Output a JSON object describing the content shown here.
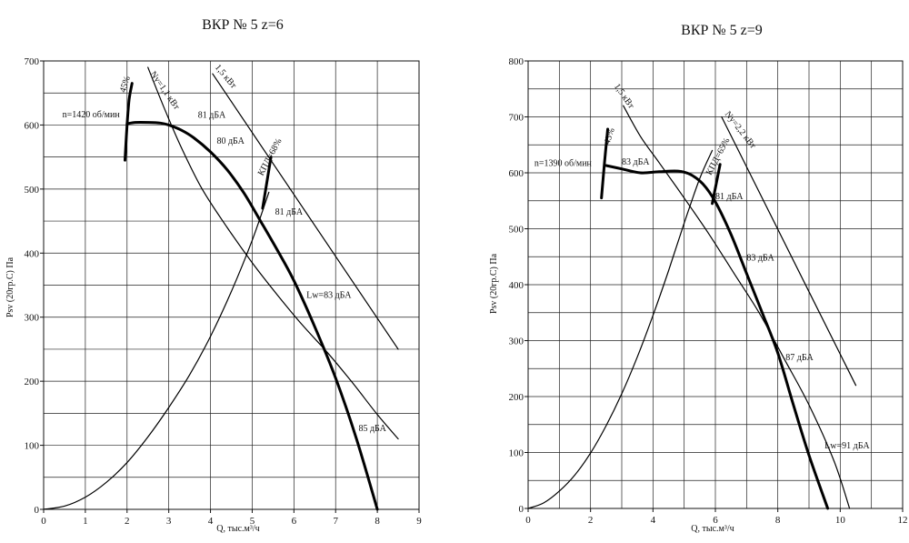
{
  "charts": [
    {
      "title": "ВКР № 5 z=6",
      "xlabel": "Q, тыс.м³/ч",
      "ylabel": "Psv (20гр.C) Па",
      "xticks": [
        "0",
        "1",
        "2",
        "3",
        "4",
        "5",
        "6",
        "7",
        "8",
        "9"
      ],
      "yticks": [
        "0",
        "100",
        "200",
        "300",
        "400",
        "500",
        "600",
        "700"
      ],
      "annotations": {
        "speed": "n=1420 об/мин",
        "eff45": "45%",
        "eff_max": "КПД=68%",
        "ny": "Ny=1,1 кВт",
        "ny2": "1,5 кВт",
        "lw": "Lw=83 дБА",
        "s1": "81 дБА",
        "s2": "80 дБА",
        "s3": "81 дБА",
        "s4": "85 дБА"
      }
    },
    {
      "title": "ВКР № 5 z=9",
      "xlabel": "Q, тыс.м³/ч",
      "ylabel": "Psv (20гр.C) Па",
      "xticks": [
        "0",
        "2",
        "4",
        "6",
        "8",
        "10",
        "12"
      ],
      "yticks": [
        "0",
        "100",
        "200",
        "300",
        "400",
        "500",
        "600",
        "700",
        "800"
      ],
      "annotations": {
        "speed": "n=1390 об/мин",
        "eff45": "45%",
        "eff_max": "КПД=65%",
        "ny": "1,5 кВт",
        "ny2": "Ny=2,2 кВт",
        "lw": "Lw=91 дБА",
        "s1": "83 дБА",
        "s2": "81 дБА",
        "s3": "83 дБА",
        "s4": "87 дБА"
      }
    }
  ],
  "chart_data": [
    {
      "type": "line",
      "title": "ВКР № 5 z=6",
      "xlabel": "Q, тыс.м³/ч",
      "ylabel": "Psv (20гр.C) Па",
      "xlim": [
        0,
        9
      ],
      "ylim": [
        0,
        700
      ],
      "grid": true,
      "series": [
        {
          "name": "n=1420 об/мин",
          "style": "bold",
          "x": [
            2.0,
            2.2,
            2.5,
            2.8,
            3.0,
            3.3,
            3.6,
            4.0,
            4.4,
            4.8,
            5.2,
            5.6,
            6.0,
            6.5,
            7.0,
            7.5,
            8.0
          ],
          "y": [
            602,
            604,
            604,
            603,
            600,
            592,
            580,
            558,
            530,
            494,
            450,
            405,
            357,
            285,
            205,
            110,
            0
          ]
        },
        {
          "name": "45%",
          "style": "bold",
          "x": [
            1.95,
            2.0,
            2.05,
            2.12
          ],
          "y": [
            545,
            600,
            640,
            665
          ]
        },
        {
          "name": "КПД=68%",
          "style": "bold",
          "x": [
            5.25,
            5.45
          ],
          "y": [
            470,
            550
          ]
        },
        {
          "name": "Ny=1,1 кВт",
          "style": "thin",
          "x": [
            2.5,
            2.9,
            3.3,
            3.8,
            4.4,
            5.0,
            5.6,
            6.2,
            6.8,
            7.4,
            8.0,
            8.5
          ],
          "y": [
            690,
            625,
            565,
            500,
            440,
            385,
            335,
            288,
            245,
            198,
            148,
            110
          ]
        },
        {
          "name": "1,5 кВт",
          "style": "thin",
          "x": [
            4.05,
            8.5
          ],
          "y": [
            680,
            250
          ]
        },
        {
          "name": "system",
          "style": "thin",
          "x": [
            0,
            0.5,
            1.0,
            1.5,
            2.0,
            2.5,
            3.0,
            3.5,
            4.0,
            4.5,
            5.0,
            5.4
          ],
          "y": [
            0,
            5,
            19,
            42,
            73,
            113,
            159,
            210,
            270,
            340,
            420,
            495
          ]
        }
      ]
    },
    {
      "type": "line",
      "title": "ВКР № 5 z=9",
      "xlabel": "Q, тыс.м³/ч",
      "ylabel": "Psv (20гр.C) Па",
      "xlim": [
        0,
        12
      ],
      "ylim": [
        0,
        800
      ],
      "grid": true,
      "series": [
        {
          "name": "n=1390 об/мин",
          "style": "bold",
          "x": [
            2.5,
            3.0,
            3.6,
            4.2,
            4.8,
            5.2,
            5.6,
            6.0,
            6.5,
            7.0,
            7.5,
            8.0,
            8.5,
            9.0,
            9.6
          ],
          "y": [
            613,
            607,
            600,
            602,
            603,
            597,
            580,
            548,
            490,
            420,
            350,
            278,
            185,
            95,
            0
          ]
        },
        {
          "name": "45%",
          "style": "bold",
          "x": [
            2.35,
            2.45,
            2.55
          ],
          "y": [
            555,
            620,
            678
          ]
        },
        {
          "name": "КПД=65%",
          "style": "bold",
          "x": [
            5.9,
            6.15
          ],
          "y": [
            545,
            615
          ]
        },
        {
          "name": "1,5 кВт",
          "style": "thin",
          "x": [
            3.05,
            3.6,
            4.2,
            5.0,
            5.8,
            6.6,
            7.4,
            8.2,
            9.0,
            9.8,
            10.3
          ],
          "y": [
            720,
            665,
            618,
            555,
            490,
            420,
            350,
            268,
            185,
            85,
            0
          ]
        },
        {
          "name": "Ny=2,2 кВт",
          "style": "thin",
          "x": [
            6.2,
            10.5
          ],
          "y": [
            700,
            220
          ]
        },
        {
          "name": "system",
          "style": "thin",
          "x": [
            0,
            0.5,
            1.0,
            1.5,
            2.0,
            2.5,
            3.0,
            3.5,
            4.0,
            4.5,
            5.0,
            5.5,
            5.9
          ],
          "y": [
            0,
            10,
            31,
            60,
            99,
            148,
            205,
            271,
            345,
            425,
            510,
            590,
            640
          ]
        }
      ]
    }
  ]
}
